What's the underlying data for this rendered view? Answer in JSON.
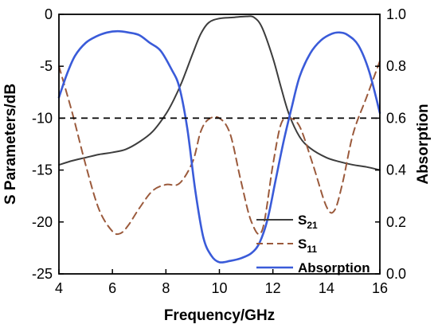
{
  "chart_data": {
    "type": "line",
    "xlabel": "Frequency/GHz",
    "ylabel_left": "S Parameters/dB",
    "ylabel_right": "Absorption",
    "xlim": [
      4,
      16
    ],
    "ylim_left": [
      -25,
      0
    ],
    "ylim_right": [
      0.0,
      1.0
    ],
    "x_ticks": [
      "4",
      "6",
      "8",
      "10",
      "12",
      "14",
      "16"
    ],
    "y_left_ticks": [
      "0",
      "-5",
      "-10",
      "-15",
      "-20",
      "-25"
    ],
    "y_right_ticks": [
      "1.0",
      "0.8",
      "0.6",
      "0.4",
      "0.2",
      "0.0"
    ],
    "reference_line": {
      "y": -10,
      "axis": "left",
      "style": "dashed"
    },
    "legend": {
      "placement": "bottom-right",
      "labels": [
        "S",
        "S",
        "Absorption"
      ],
      "subscripts": [
        "21",
        "11",
        ""
      ]
    },
    "series": [
      {
        "name": "S21",
        "axis": "left",
        "color": "#3d3d3d",
        "style": "solid",
        "x": [
          4,
          4.5,
          5,
          5.5,
          6,
          6.5,
          7,
          7.5,
          8,
          8.3,
          8.6,
          9,
          9.3,
          9.6,
          10,
          10.5,
          11,
          11.3,
          11.6,
          12,
          12.3,
          12.6,
          13,
          13.4,
          14,
          14.5,
          15,
          15.5,
          16
        ],
        "y": [
          -14.5,
          -14.1,
          -13.8,
          -13.5,
          -13.3,
          -13.0,
          -12.3,
          -11.3,
          -9.6,
          -8.2,
          -6.5,
          -3.8,
          -1.9,
          -0.8,
          -0.4,
          -0.3,
          -0.2,
          -0.3,
          -1.3,
          -4.2,
          -7.0,
          -9.6,
          -11.8,
          -12.9,
          -13.8,
          -14.2,
          -14.5,
          -14.7,
          -15.0
        ]
      },
      {
        "name": "S11",
        "axis": "left",
        "color": "#9b5a3c",
        "style": "dashed",
        "x": [
          4,
          4.5,
          5,
          5.5,
          6,
          6.3,
          6.6,
          7,
          7.5,
          8,
          8.5,
          9,
          9.3,
          9.6,
          10,
          10.4,
          10.8,
          11.2,
          11.6,
          12,
          12.3,
          12.6,
          13,
          13.5,
          14,
          14.3,
          14.6,
          15,
          15.5,
          16
        ],
        "y": [
          -5.0,
          -9.5,
          -14.5,
          -18.8,
          -20.9,
          -21.1,
          -20.3,
          -18.7,
          -17.0,
          -16.4,
          -16.3,
          -14.2,
          -11.3,
          -10.1,
          -10.0,
          -11.5,
          -16.0,
          -20.0,
          -20.8,
          -14.5,
          -10.6,
          -10.0,
          -10.8,
          -14.5,
          -18.5,
          -18.9,
          -16.3,
          -11.5,
          -8.0,
          -4.5
        ]
      },
      {
        "name": "Absorption",
        "axis": "right",
        "color": "#3a5bd9",
        "style": "solid",
        "x": [
          4,
          4.3,
          4.6,
          5,
          5.4,
          5.8,
          6.2,
          6.6,
          7,
          7.4,
          7.8,
          8.2,
          8.5,
          8.8,
          9.1,
          9.4,
          9.7,
          10,
          10.4,
          10.8,
          11.2,
          11.5,
          11.8,
          12.1,
          12.4,
          12.7,
          13,
          13.4,
          13.8,
          14.2,
          14.5,
          14.8,
          15.2,
          15.6,
          16
        ],
        "y": [
          0.68,
          0.77,
          0.84,
          0.89,
          0.915,
          0.93,
          0.935,
          0.93,
          0.92,
          0.89,
          0.86,
          0.79,
          0.72,
          0.56,
          0.32,
          0.14,
          0.07,
          0.045,
          0.05,
          0.06,
          0.08,
          0.12,
          0.21,
          0.36,
          0.51,
          0.64,
          0.76,
          0.85,
          0.9,
          0.925,
          0.93,
          0.92,
          0.88,
          0.78,
          0.62
        ]
      }
    ]
  }
}
